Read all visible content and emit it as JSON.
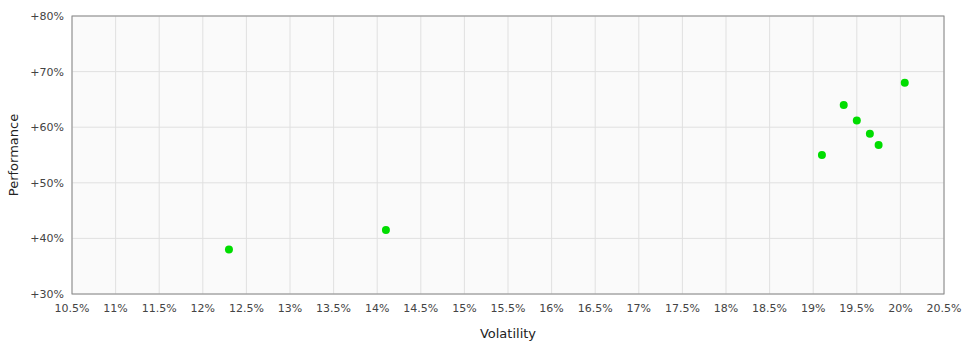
{
  "chart_data": {
    "type": "scatter",
    "xlabel": "Volatility",
    "ylabel": "Performance",
    "x": [
      12.3,
      14.1,
      19.1,
      19.35,
      19.5,
      19.65,
      19.75,
      20.05
    ],
    "values": [
      38.0,
      41.5,
      55.0,
      64.0,
      61.2,
      58.8,
      56.8,
      68.0
    ],
    "color": "#00dd00",
    "xlim": [
      10.5,
      20.5
    ],
    "ylim": [
      30,
      80
    ],
    "xticks": [
      {
        "value": 10.5,
        "label": "10.5%"
      },
      {
        "value": 11.0,
        "label": "11%"
      },
      {
        "value": 11.5,
        "label": "11.5%"
      },
      {
        "value": 12.0,
        "label": "12%"
      },
      {
        "value": 12.5,
        "label": "12.5%"
      },
      {
        "value": 13.0,
        "label": "13%"
      },
      {
        "value": 13.5,
        "label": "13.5%"
      },
      {
        "value": 14.0,
        "label": "14%"
      },
      {
        "value": 14.5,
        "label": "14.5%"
      },
      {
        "value": 15.0,
        "label": "15%"
      },
      {
        "value": 15.5,
        "label": "15.5%"
      },
      {
        "value": 16.0,
        "label": "16%"
      },
      {
        "value": 16.5,
        "label": "16.5%"
      },
      {
        "value": 17.0,
        "label": "17%"
      },
      {
        "value": 17.5,
        "label": "17.5%"
      },
      {
        "value": 18.0,
        "label": "18%"
      },
      {
        "value": 18.5,
        "label": "18.5%"
      },
      {
        "value": 19.0,
        "label": "19%"
      },
      {
        "value": 19.5,
        "label": "19.5%"
      },
      {
        "value": 20.0,
        "label": "20%"
      },
      {
        "value": 20.5,
        "label": "20.5%"
      }
    ],
    "yticks": [
      {
        "value": 30,
        "label": "+30%"
      },
      {
        "value": 40,
        "label": "+40%"
      },
      {
        "value": 50,
        "label": "+50%"
      },
      {
        "value": 60,
        "label": "+60%"
      },
      {
        "value": 70,
        "label": "+70%"
      },
      {
        "value": 80,
        "label": "+80%"
      }
    ],
    "grid": true
  }
}
